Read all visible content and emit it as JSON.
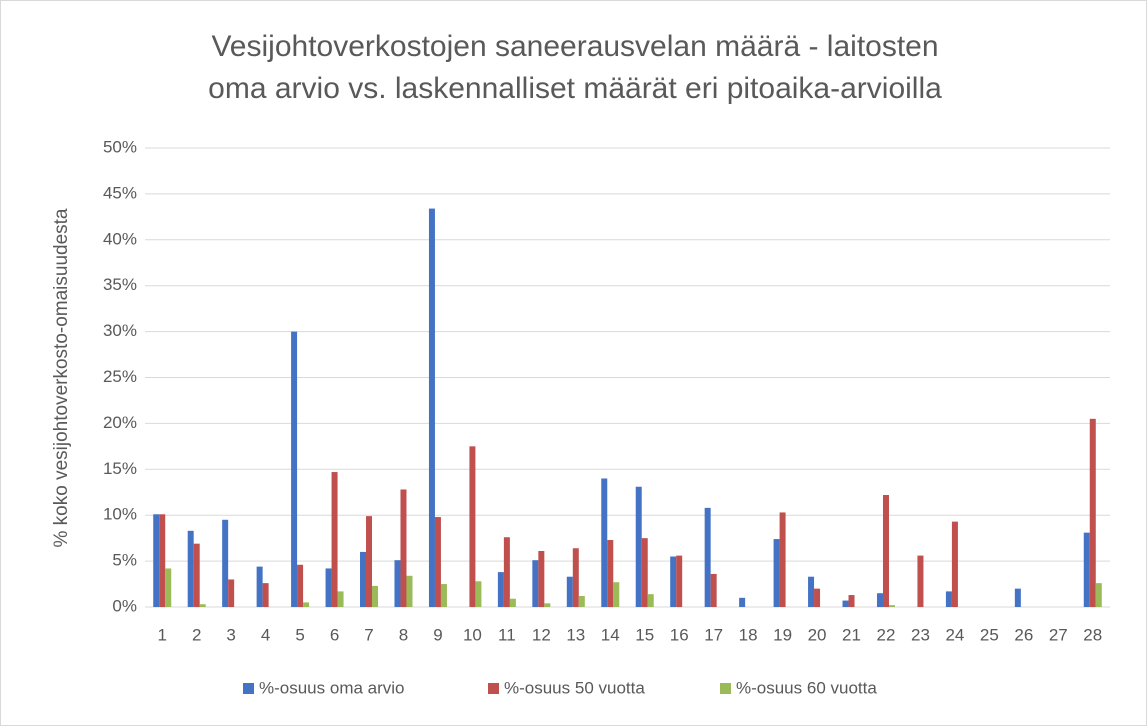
{
  "chart_data": {
    "type": "bar",
    "title": [
      "Vesijohtoverkostojen saneerausvelan määrä - laitosten",
      "oma arvio vs. laskennalliset määrät eri pitoaika-arvioilla"
    ],
    "y_label": "% koko vesijohtoverkosto-omaisuudesta",
    "categories": [
      "1",
      "2",
      "3",
      "4",
      "5",
      "6",
      "7",
      "8",
      "9",
      "10",
      "11",
      "12",
      "13",
      "14",
      "15",
      "16",
      "17",
      "18",
      "19",
      "20",
      "21",
      "22",
      "23",
      "24",
      "25",
      "26",
      "27",
      "28"
    ],
    "series": [
      {
        "name": "%-osuus oma arvio",
        "color": "#4472c4",
        "values": [
          10.1,
          8.3,
          9.5,
          4.4,
          30,
          4.2,
          6.0,
          5.1,
          43.4,
          0,
          3.8,
          5.1,
          3.3,
          14,
          13.1,
          5.5,
          10.8,
          1.0,
          7.4,
          3.3,
          0.7,
          1.5,
          0,
          1.7,
          0,
          2.0,
          0,
          8.1
        ]
      },
      {
        "name": "%-osuus 50 vuotta",
        "color": "#c0504d",
        "values": [
          10.1,
          6.9,
          3.0,
          2.6,
          4.6,
          14.7,
          9.9,
          12.8,
          9.8,
          17.5,
          7.6,
          6.1,
          6.4,
          7.3,
          7.5,
          5.6,
          3.6,
          0,
          10.3,
          2.0,
          1.3,
          12.2,
          5.6,
          9.3,
          0,
          0,
          0,
          20.5
        ]
      },
      {
        "name": "%-osuus 60 vuotta",
        "color": "#9bbb59",
        "values": [
          4.2,
          0.3,
          0,
          0,
          0.5,
          1.7,
          2.3,
          3.4,
          2.5,
          2.8,
          0.9,
          0.4,
          1.2,
          2.7,
          1.4,
          0,
          0,
          0,
          0,
          0,
          0,
          0.2,
          0,
          0,
          0,
          0,
          0,
          2.6
        ]
      }
    ],
    "ylim": [
      0,
      50
    ],
    "yticks": [
      {
        "value": 0,
        "label": "0%"
      },
      {
        "value": 5,
        "label": "5%"
      },
      {
        "value": 10,
        "label": "10%"
      },
      {
        "value": 15,
        "label": "15%"
      },
      {
        "value": 20,
        "label": "20%"
      },
      {
        "value": 25,
        "label": "25%"
      },
      {
        "value": 30,
        "label": "30%"
      },
      {
        "value": 35,
        "label": "35%"
      },
      {
        "value": 40,
        "label": "40%"
      },
      {
        "value": 45,
        "label": "45%"
      },
      {
        "value": 50,
        "label": "50%"
      }
    ],
    "grid": true,
    "legend": "bottom"
  }
}
